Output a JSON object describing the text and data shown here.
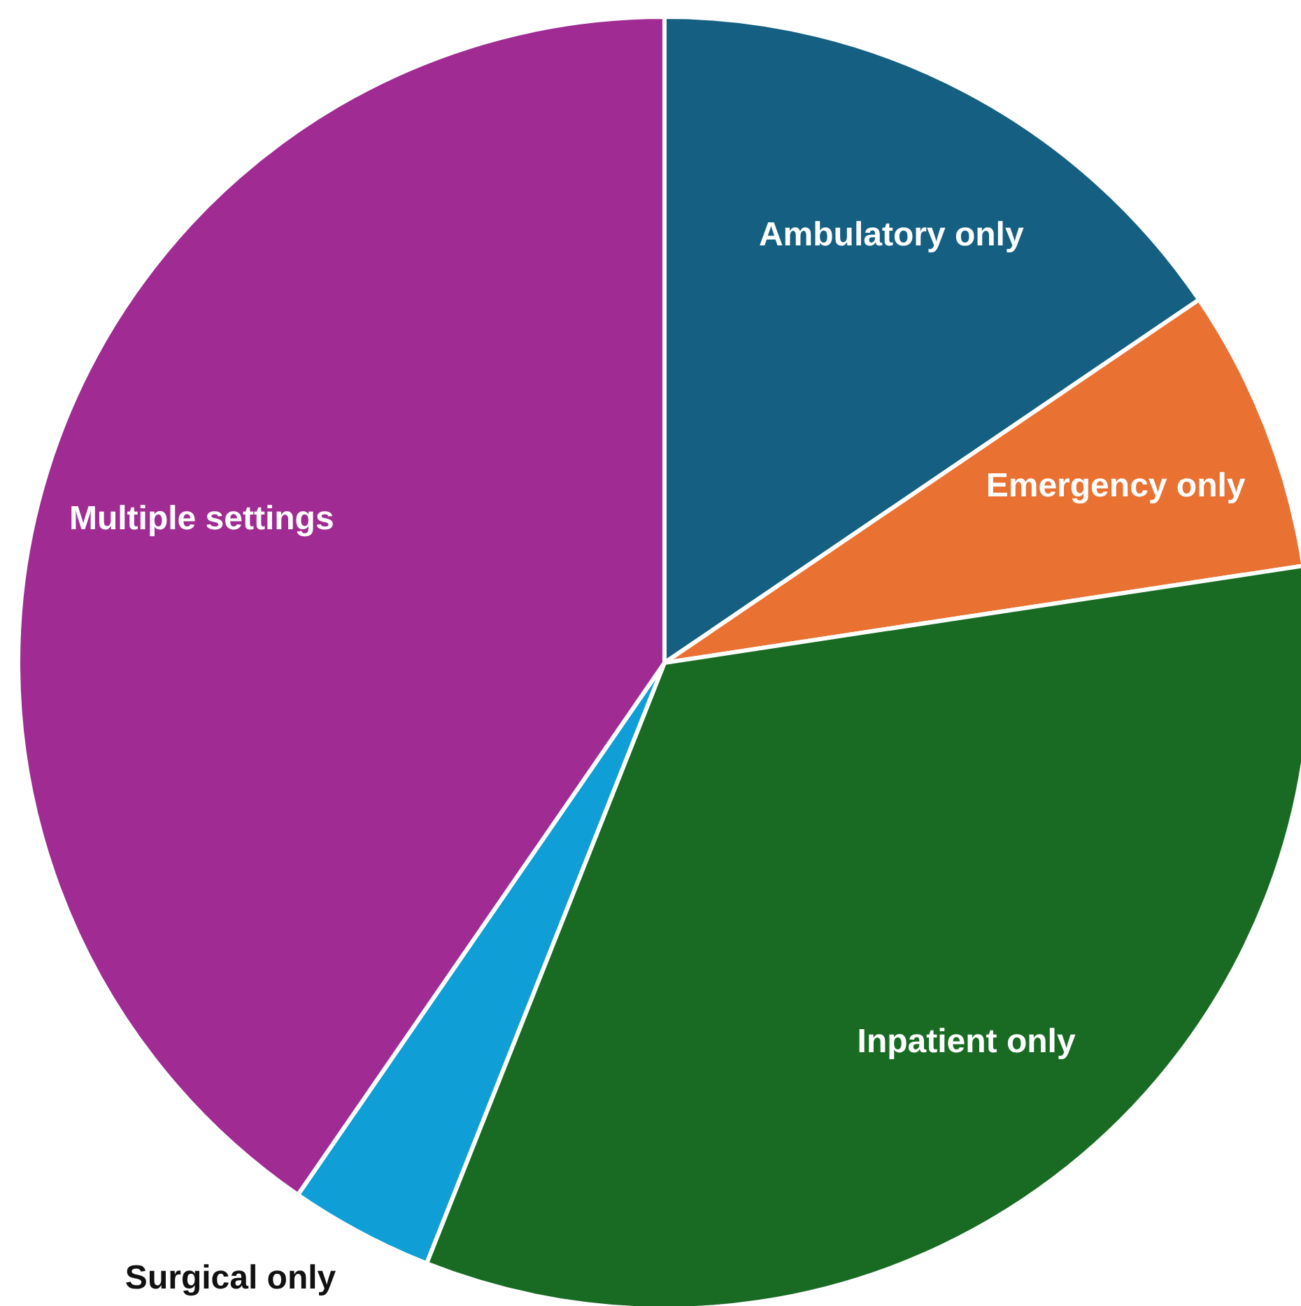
{
  "chart_data": {
    "type": "pie",
    "categories": [
      "Ambulatory only",
      "Emergency only",
      "Inpatient only",
      "Surgical only",
      "Multiple settings"
    ],
    "values": [
      15.5,
      7.1,
      33.4,
      3.6,
      40.4
    ],
    "colors": [
      "#156082",
      "#e97132",
      "#196b24",
      "#0f9ed5",
      "#a02b93"
    ],
    "legend": false
  }
}
